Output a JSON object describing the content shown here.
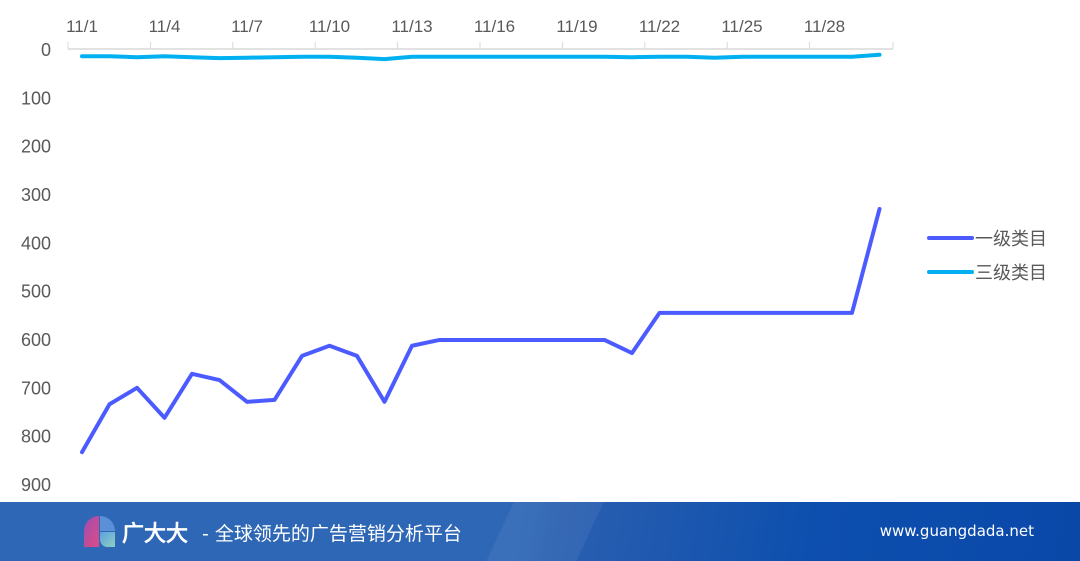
{
  "chart_data": {
    "type": "line",
    "title": "",
    "xlabel": "",
    "ylabel": "",
    "x": [
      "11/1",
      "11/2",
      "11/3",
      "11/4",
      "11/5",
      "11/6",
      "11/7",
      "11/8",
      "11/9",
      "11/10",
      "11/11",
      "11/12",
      "11/13",
      "11/14",
      "11/15",
      "11/16",
      "11/17",
      "11/18",
      "11/19",
      "11/20",
      "11/21",
      "11/22",
      "11/23",
      "11/24",
      "11/25",
      "11/26",
      "11/27",
      "11/28",
      "11/29",
      "11/30"
    ],
    "x_tick_labels": [
      "11/1",
      "11/4",
      "11/7",
      "11/10",
      "11/13",
      "11/16",
      "11/19",
      "11/22",
      "11/25",
      "11/28"
    ],
    "y_ticks": [
      0,
      100,
      200,
      300,
      400,
      500,
      600,
      700,
      800,
      900
    ],
    "ylim": [
      0,
      900
    ],
    "y_inverted": true,
    "grid": false,
    "legend_position": "right",
    "series": [
      {
        "name": "一级类目",
        "color": "#4b5bff",
        "values": [
          834,
          735,
          701,
          763,
          672,
          685,
          730,
          726,
          635,
          614,
          635,
          730,
          614,
          602,
          602,
          602,
          602,
          602,
          602,
          602,
          629,
          546,
          546,
          546,
          546,
          546,
          546,
          546,
          546,
          331
        ]
      },
      {
        "name": "三级类目",
        "color": "#00b0f0",
        "values": [
          15,
          15,
          17,
          15,
          17,
          19,
          18,
          17,
          16,
          16,
          18,
          21,
          16,
          16,
          16,
          16,
          16,
          16,
          16,
          16,
          17,
          16,
          16,
          18,
          16,
          16,
          16,
          16,
          16,
          12
        ]
      }
    ]
  },
  "footer": {
    "brand": "广大大",
    "slogan": "- 全球领先的广告营销分析平台",
    "url": "www.guangdada.net"
  }
}
